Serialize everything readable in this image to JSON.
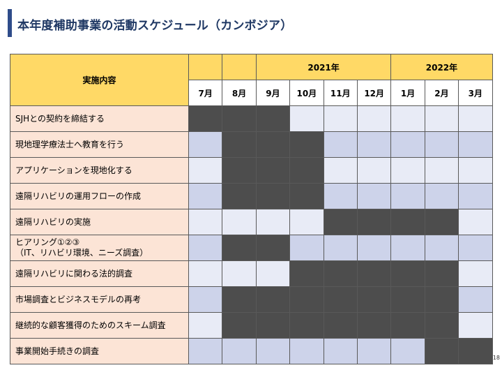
{
  "title": "本年度補助事業の活動スケジュール（カンボジア）",
  "page_number": "18",
  "colors": {
    "accent": "#2F4C8A",
    "header_fill": "#FFD966",
    "task_fill": "#FCE4D6",
    "active": "#4D4D4D",
    "inactive_light": "#E8EBF6",
    "inactive_mid": "#CDD3EA"
  },
  "table": {
    "task_header": "実施内容",
    "years": [
      {
        "label": "2021年",
        "span": 6
      },
      {
        "label": "2022年",
        "span": 3
      }
    ],
    "months": [
      "7月",
      "8月",
      "9月",
      "10月",
      "11月",
      "12月",
      "1月",
      "2月",
      "3月"
    ],
    "rows": [
      {
        "lines": [
          "SJHとの契約を締結する"
        ],
        "active": [
          1,
          1,
          1,
          0,
          0,
          0,
          0,
          0,
          0
        ]
      },
      {
        "lines": [
          "現地理学療法士へ教育を行う"
        ],
        "active": [
          0,
          1,
          1,
          1,
          0,
          0,
          0,
          0,
          0
        ]
      },
      {
        "lines": [
          "アプリケーションを現地化する"
        ],
        "active": [
          0,
          1,
          1,
          1,
          0,
          0,
          0,
          0,
          0
        ]
      },
      {
        "lines": [
          "遠隔リハビリの運用フローの作成"
        ],
        "active": [
          0,
          1,
          1,
          1,
          0,
          0,
          0,
          0,
          0
        ]
      },
      {
        "lines": [
          "遠隔リハビリの実施"
        ],
        "active": [
          0,
          0,
          0,
          0,
          1,
          1,
          1,
          1,
          0
        ]
      },
      {
        "lines": [
          "ヒアリング①②③",
          "（IT、リハビリ環境、ニーズ調査）"
        ],
        "active": [
          0,
          1,
          1,
          0,
          0,
          0,
          0,
          0,
          0
        ]
      },
      {
        "lines": [
          "遠隔リハビリに関わる法的調査"
        ],
        "active": [
          0,
          0,
          0,
          1,
          1,
          1,
          1,
          1,
          0
        ]
      },
      {
        "lines": [
          "市場調査とビジネスモデルの再考"
        ],
        "active": [
          0,
          1,
          1,
          1,
          1,
          1,
          1,
          1,
          0
        ]
      },
      {
        "lines": [
          "継続的な顧客獲得のためのスキーム調査"
        ],
        "active": [
          0,
          1,
          1,
          1,
          1,
          1,
          1,
          1,
          0
        ]
      },
      {
        "lines": [
          "事業開始手続きの調査"
        ],
        "active": [
          0,
          0,
          0,
          0,
          0,
          0,
          0,
          1,
          1
        ]
      }
    ]
  }
}
